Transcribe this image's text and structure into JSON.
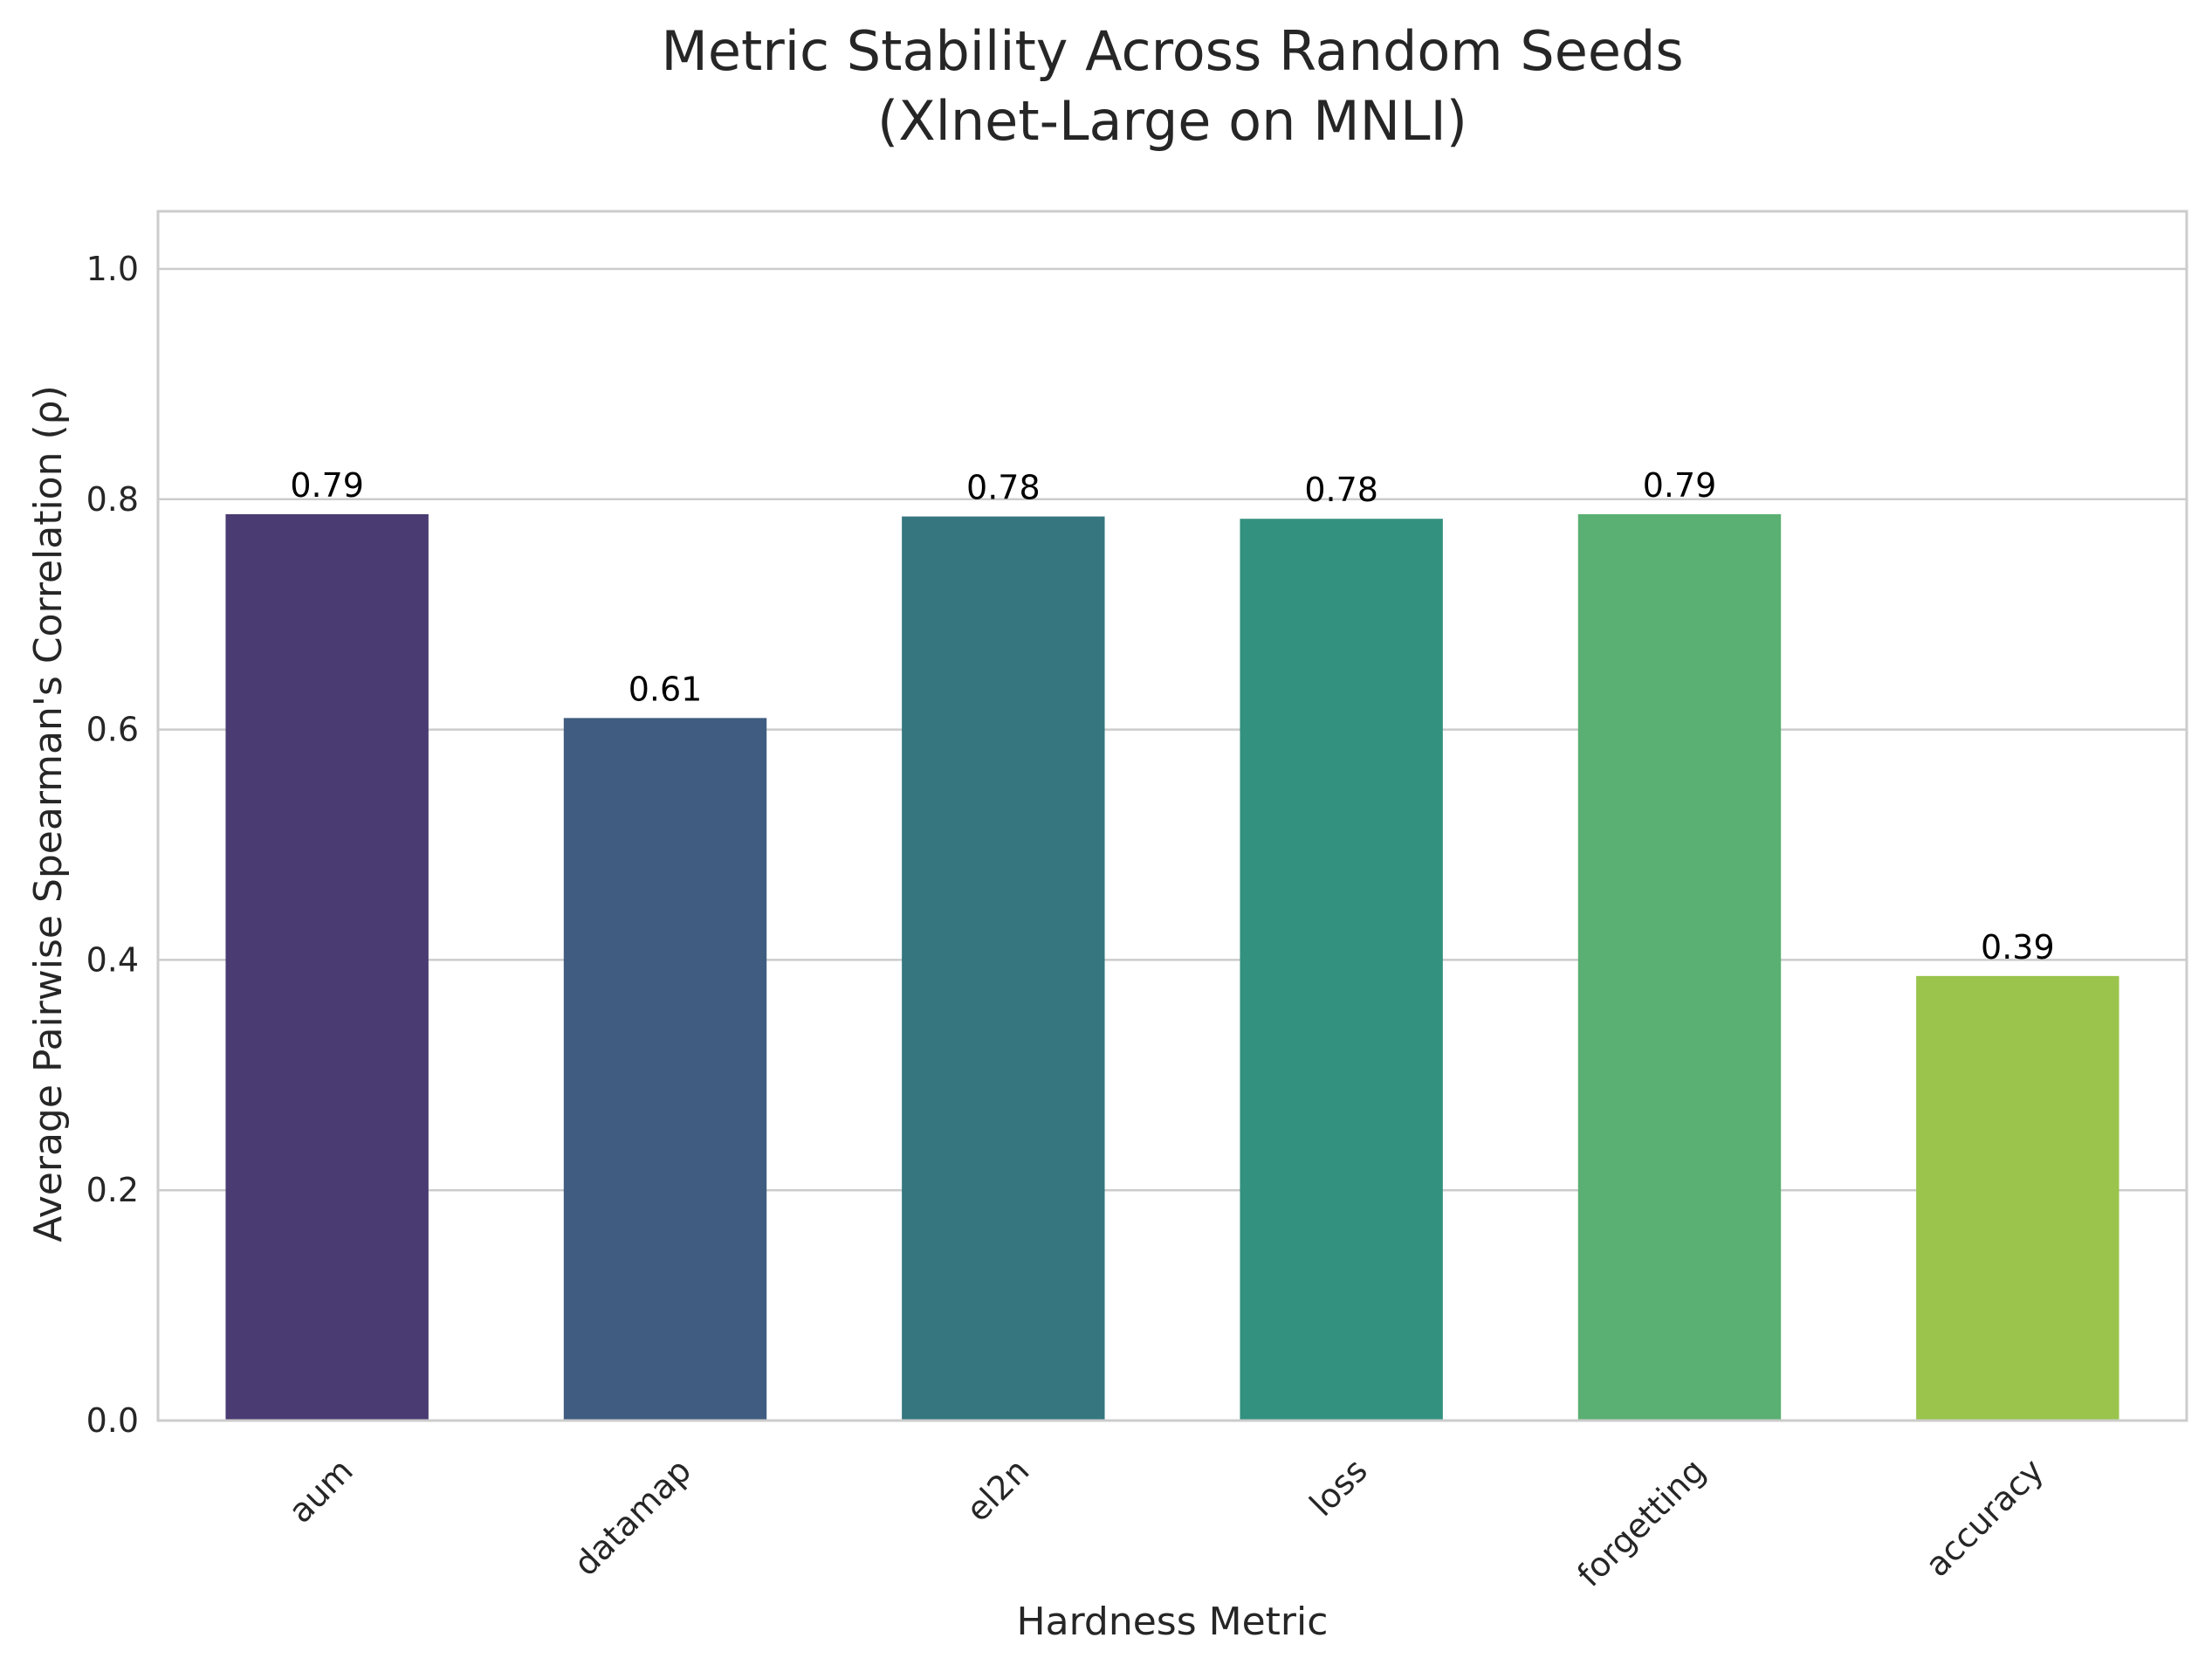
{
  "chart_data": {
    "type": "bar",
    "title": "Metric Stability Across Random Seeds",
    "subtitle": "(Xlnet-Large on MNLI)",
    "xlabel": "Hardness Metric",
    "ylabel": "Average Pairwise Spearman's Correlation (ρ)",
    "categories": [
      "aum",
      "datamap",
      "el2n",
      "loss",
      "forgetting",
      "accuracy"
    ],
    "values": [
      0.787,
      0.61,
      0.785,
      0.783,
      0.787,
      0.386
    ],
    "value_labels": [
      "0.79",
      "0.61",
      "0.78",
      "0.78",
      "0.79",
      "0.39"
    ],
    "colors": [
      "#4a3b72",
      "#405c80",
      "#35767f",
      "#33917f",
      "#5aaf72",
      "#9ac44b"
    ],
    "ylim": [
      0,
      1.05
    ],
    "yticks": [
      0.0,
      0.2,
      0.4,
      0.6,
      0.8,
      1.0
    ],
    "ytick_labels": [
      "0.0",
      "0.2",
      "0.4",
      "0.6",
      "0.8",
      "1.0"
    ],
    "grid": "horizontal",
    "legend": "none"
  }
}
